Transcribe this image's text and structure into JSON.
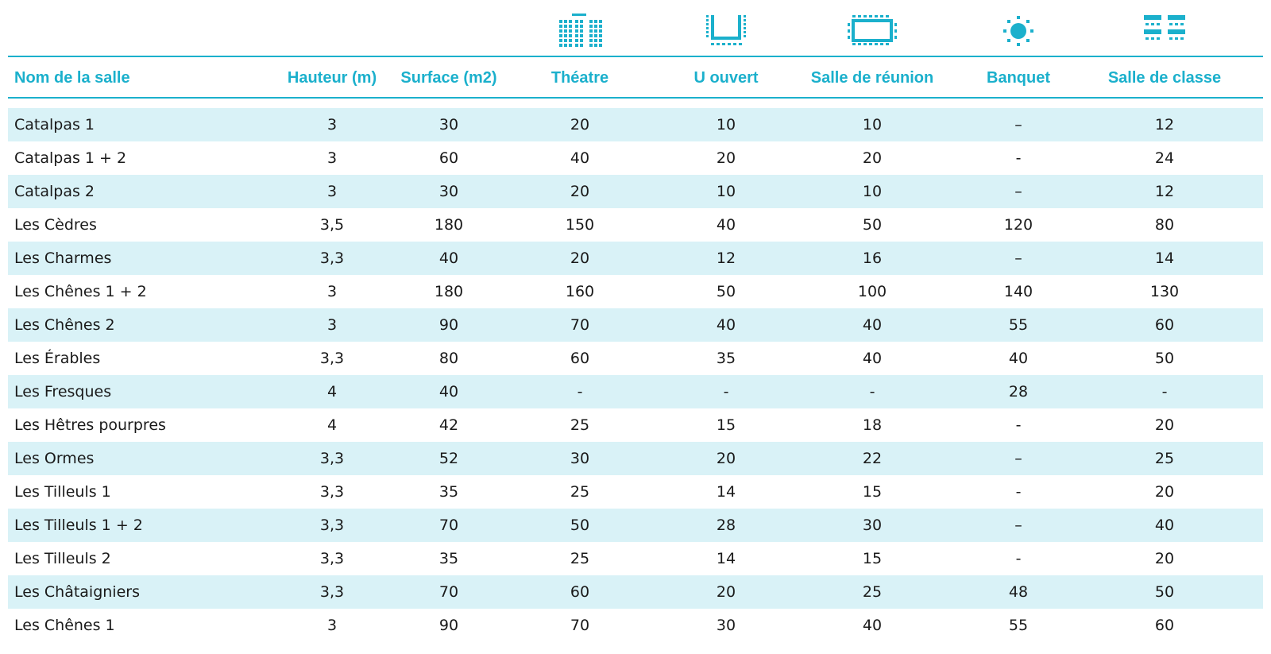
{
  "columns": [
    {
      "key": "name",
      "label": "Nom de la salle"
    },
    {
      "key": "hauteur",
      "label": "Hauteur (m)"
    },
    {
      "key": "surface",
      "label": "Surface (m2)"
    },
    {
      "key": "theatre",
      "label": "Théatre",
      "icon": "theatre-layout-icon"
    },
    {
      "key": "u_ouvert",
      "label": "U ouvert",
      "icon": "u-shape-layout-icon"
    },
    {
      "key": "reunion",
      "label": "Salle de réunion",
      "icon": "boardroom-layout-icon"
    },
    {
      "key": "banquet",
      "label": "Banquet",
      "icon": "banquet-layout-icon"
    },
    {
      "key": "classe",
      "label": "Salle de classe",
      "icon": "classroom-layout-icon"
    }
  ],
  "accent_color": "#1bb0cc",
  "stripe_color": "#d9f2f7",
  "rows": [
    [
      "Catalpas 1",
      "3",
      "30",
      "20",
      "10",
      "10",
      "–",
      "12"
    ],
    [
      "Catalpas 1 + 2",
      "3",
      "60",
      "40",
      "20",
      "20",
      "-",
      "24"
    ],
    [
      "Catalpas 2",
      "3",
      "30",
      "20",
      "10",
      "10",
      "–",
      "12"
    ],
    [
      "Les Cèdres",
      "3,5",
      "180",
      "150",
      "40",
      "50",
      "120",
      "80"
    ],
    [
      "Les Charmes",
      "3,3",
      "40",
      "20",
      "12",
      "16",
      "–",
      "14"
    ],
    [
      "Les Chênes 1 + 2",
      "3",
      "180",
      "160",
      "50",
      "100",
      "140",
      "130"
    ],
    [
      "Les Chênes 2",
      "3",
      "90",
      "70",
      "40",
      "40",
      "55",
      "60"
    ],
    [
      "Les Érables",
      "3,3",
      "80",
      "60",
      "35",
      "40",
      "40",
      "50"
    ],
    [
      "Les Fresques",
      "4",
      "40",
      "-",
      "-",
      "-",
      "28",
      "-"
    ],
    [
      "Les Hêtres pourpres",
      "4",
      "42",
      "25",
      "15",
      "18",
      "-",
      "20"
    ],
    [
      "Les Ormes",
      "3,3",
      "52",
      "30",
      "20",
      "22",
      "–",
      "25"
    ],
    [
      "Les Tilleuls 1",
      "3,3",
      "35",
      "25",
      "14",
      "15",
      "-",
      "20"
    ],
    [
      "Les Tilleuls 1 + 2",
      "3,3",
      "70",
      "50",
      "28",
      "30",
      "–",
      "40"
    ],
    [
      "Les Tilleuls 2",
      "3,3",
      "35",
      "25",
      "14",
      "15",
      "-",
      "20"
    ],
    [
      "Les Châtaigniers",
      "3,3",
      "70",
      "60",
      "20",
      "25",
      "48",
      "50"
    ],
    [
      "Les Chênes 1",
      "3",
      "90",
      "70",
      "30",
      "40",
      "55",
      "60"
    ]
  ]
}
